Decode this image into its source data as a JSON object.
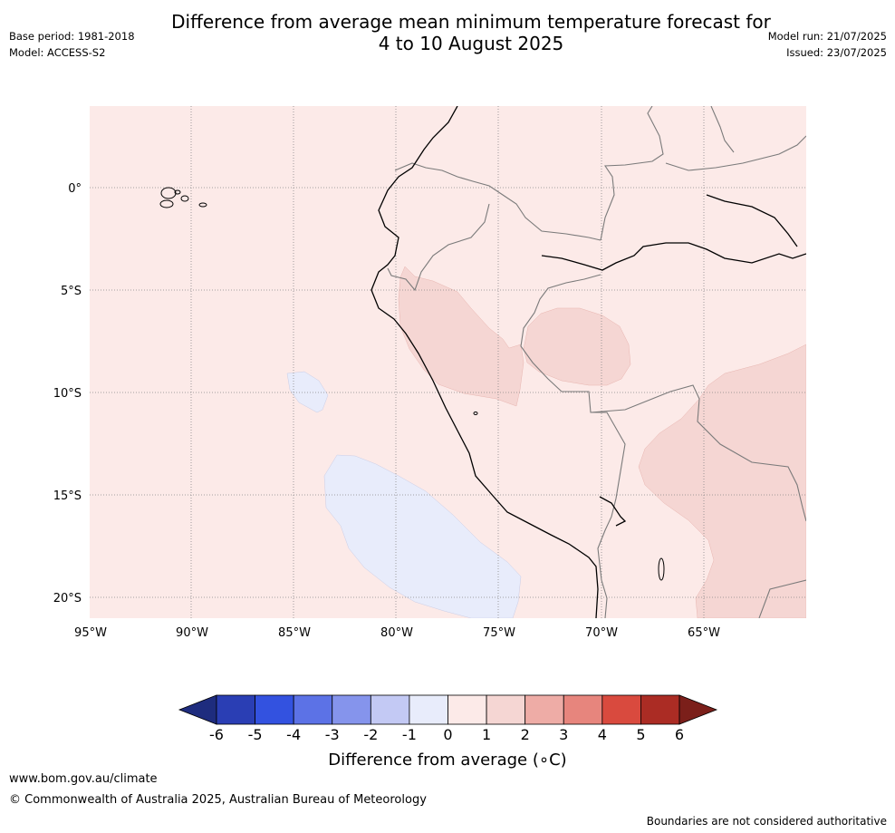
{
  "header": {
    "title_line1": "Difference from average mean minimum temperature forecast for",
    "title_line2": "4 to 10 August 2025",
    "base_period": "Base period: 1981-2018",
    "model": "Model: ACCESS-S2",
    "model_run": "Model run: 21/07/2025",
    "issued": "Issued: 23/07/2025"
  },
  "map": {
    "lat_labels": [
      "0°",
      "5°S",
      "10°S",
      "15°S",
      "20°S"
    ],
    "lon_labels": [
      "95°W",
      "90°W",
      "85°W",
      "80°W",
      "75°W",
      "70°W",
      "65°W"
    ],
    "ocean_background_color": "#fceae8",
    "anomaly_regions": [
      {
        "name": "peru-andes-warm",
        "range": "1 to 2",
        "color": "#f5d6d3"
      },
      {
        "name": "amazon-warm",
        "range": "1 to 2",
        "color": "#f5d6d3"
      },
      {
        "name": "bolivia-warm",
        "range": "1 to 2",
        "color": "#f5d6d3"
      },
      {
        "name": "pacific-cool-small",
        "range": "-1 to 0",
        "color": "#e8ecfb"
      },
      {
        "name": "pacific-cool-large",
        "range": "-1 to 0",
        "color": "#e8ecfb"
      }
    ]
  },
  "colorbar": {
    "ticks": [
      "-6",
      "-5",
      "-4",
      "-3",
      "-2",
      "-1",
      "0",
      "1",
      "2",
      "3",
      "4",
      "5",
      "6"
    ],
    "colors": [
      "#1e2c7e",
      "#2a3eb4",
      "#3352e0",
      "#5c72e6",
      "#8594ec",
      "#c3c9f4",
      "#e8ecfb",
      "#fceae8",
      "#f5d6d3",
      "#eeaca6",
      "#e7857d",
      "#d94a3e",
      "#ab2c24",
      "#7b1f1a"
    ],
    "label": "Difference from average (∘C)"
  },
  "footer": {
    "url": "www.bom.gov.au/climate",
    "copyright": "© Commonwealth of Australia 2025, Australian Bureau of Meteorology",
    "disclaimer": "Boundaries are not considered authoritative"
  }
}
